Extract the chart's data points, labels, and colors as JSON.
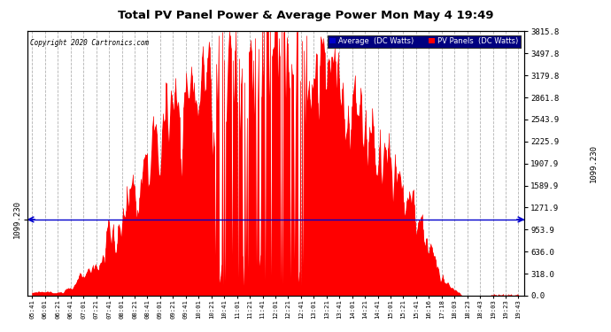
{
  "title": "Total PV Panel Power & Average Power Mon May 4 19:49",
  "copyright": "Copyright 2020 Cartronics.com",
  "legend_labels": [
    "Average  (DC Watts)",
    "PV Panels  (DC Watts)"
  ],
  "legend_colors": [
    "#0000cc",
    "#ff0000"
  ],
  "average_value": 1099.23,
  "y_right_ticks": [
    0.0,
    318.0,
    636.0,
    953.9,
    1271.9,
    1589.9,
    1907.9,
    2225.9,
    2543.9,
    2861.8,
    3179.8,
    3497.8,
    3815.8
  ],
  "y_left_label": "1099.230",
  "y_right_label": "1099.230",
  "background_color": "#ffffff",
  "plot_bg_color": "#ffffff",
  "grid_color": "#aaaaaa",
  "bar_color": "#ff0000",
  "avg_line_color": "#0000cc",
  "x_tick_labels": [
    "05:41",
    "06:01",
    "06:21",
    "06:41",
    "07:01",
    "07:21",
    "07:41",
    "08:01",
    "08:21",
    "08:41",
    "09:01",
    "09:21",
    "09:41",
    "10:01",
    "10:21",
    "10:41",
    "11:01",
    "11:21",
    "11:41",
    "12:01",
    "12:21",
    "12:41",
    "13:01",
    "13:21",
    "13:41",
    "14:01",
    "14:21",
    "14:41",
    "15:01",
    "15:21",
    "15:41",
    "16:16",
    "17:18",
    "18:03",
    "18:23",
    "18:43",
    "19:03",
    "19:23",
    "19:43"
  ],
  "ylim": [
    0,
    3815.8
  ],
  "figsize": [
    6.9,
    3.75
  ],
  "dpi": 100
}
